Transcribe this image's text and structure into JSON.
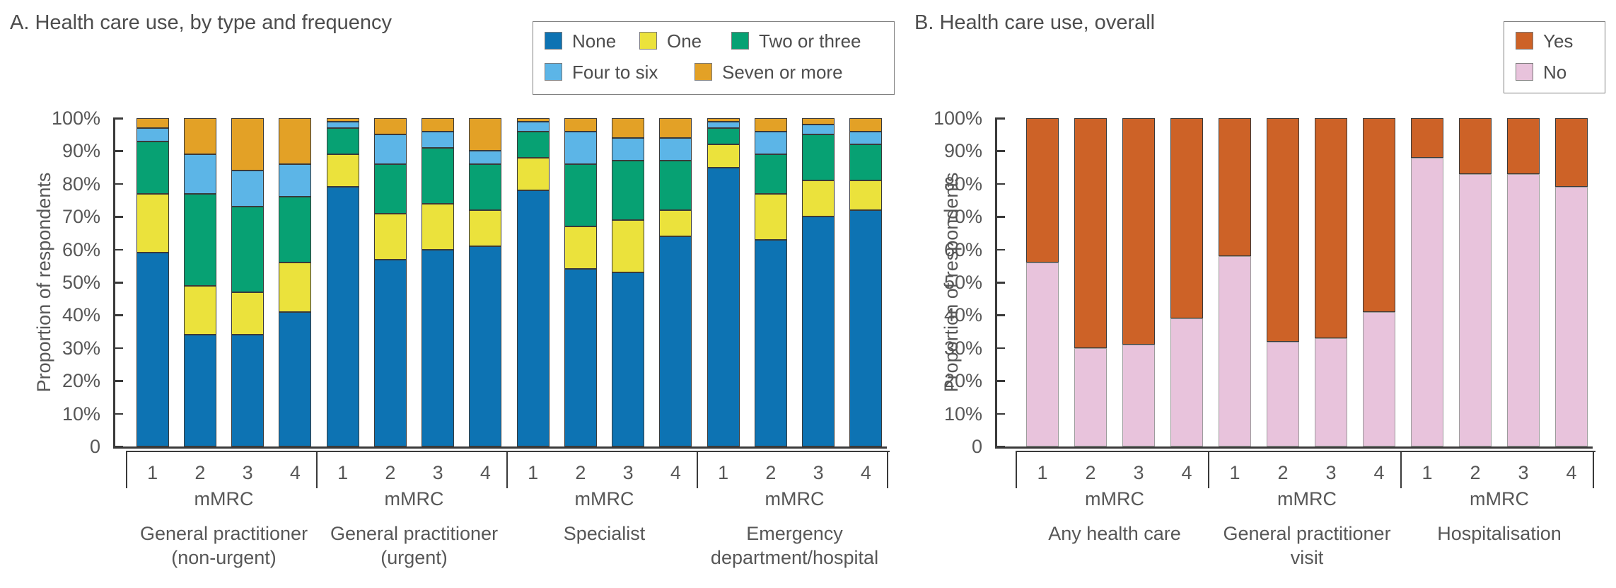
{
  "chart_data": [
    {
      "type": "bar",
      "subtype": "stacked-100-percent",
      "title": "A. Health care use, by type and frequency",
      "ylabel": "Proportion of respondents",
      "ylim": [
        0,
        100
      ],
      "yticks": [
        "100%",
        "90%",
        "80%",
        "70%",
        "60%",
        "50%",
        "40%",
        "30%",
        "20%",
        "10%",
        "0"
      ],
      "grid": false,
      "legend_position": "top-right",
      "legend_rows": [
        [
          "None",
          "One",
          "Two or three"
        ],
        [
          "Four to six",
          "Seven or more"
        ]
      ],
      "x_sub_axis_label": "mMRC",
      "series": [
        {
          "name": "None",
          "color": "#0d73b3",
          "border": "#3a3a3a"
        },
        {
          "name": "One",
          "color": "#ebe23c",
          "border": "#3a3a3a"
        },
        {
          "name": "Two or three",
          "color": "#07a173",
          "border": "#3a3a3a"
        },
        {
          "name": "Four to six",
          "color": "#5cb5e7",
          "border": "#3a3a3a"
        },
        {
          "name": "Seven or more",
          "color": "#e3a126",
          "border": "#3a3a3a"
        }
      ],
      "groups": [
        {
          "label_lines": [
            "General practitioner",
            "(non-urgent)"
          ],
          "bars": [
            {
              "x": "1",
              "values": [
                59,
                18,
                16,
                4,
                3
              ]
            },
            {
              "x": "2",
              "values": [
                34,
                15,
                28,
                12,
                11
              ]
            },
            {
              "x": "3",
              "values": [
                34,
                13,
                26,
                11,
                16
              ]
            },
            {
              "x": "4",
              "values": [
                41,
                15,
                20,
                10,
                14
              ]
            }
          ]
        },
        {
          "label_lines": [
            "General practitioner",
            "(urgent)"
          ],
          "bars": [
            {
              "x": "1",
              "values": [
                79,
                10,
                8,
                2,
                1
              ]
            },
            {
              "x": "2",
              "values": [
                57,
                14,
                15,
                9,
                5
              ]
            },
            {
              "x": "3",
              "values": [
                60,
                14,
                17,
                5,
                4
              ]
            },
            {
              "x": "4",
              "values": [
                61,
                11,
                14,
                4,
                10
              ]
            }
          ]
        },
        {
          "label_lines": [
            "Specialist"
          ],
          "bars": [
            {
              "x": "1",
              "values": [
                78,
                10,
                8,
                3,
                1
              ]
            },
            {
              "x": "2",
              "values": [
                54,
                13,
                19,
                10,
                4
              ]
            },
            {
              "x": "3",
              "values": [
                53,
                16,
                18,
                7,
                6
              ]
            },
            {
              "x": "4",
              "values": [
                64,
                8,
                15,
                7,
                6
              ]
            }
          ]
        },
        {
          "label_lines": [
            "Emergency",
            "department/hospital"
          ],
          "bars": [
            {
              "x": "1",
              "values": [
                85,
                7,
                5,
                2,
                1
              ]
            },
            {
              "x": "2",
              "values": [
                63,
                14,
                12,
                7,
                4
              ]
            },
            {
              "x": "3",
              "values": [
                70,
                11,
                14,
                3,
                2
              ]
            },
            {
              "x": "4",
              "values": [
                72,
                9,
                11,
                4,
                4
              ]
            }
          ]
        }
      ]
    },
    {
      "type": "bar",
      "subtype": "stacked-100-percent",
      "title": "B. Health care use, overall",
      "ylabel": "Proportion of respondents",
      "ylim": [
        0,
        100
      ],
      "yticks": [
        "100%",
        "90%",
        "80%",
        "70%",
        "60%",
        "50%",
        "40%",
        "30%",
        "20%",
        "10%",
        "0"
      ],
      "grid": false,
      "legend_position": "top-right",
      "legend_rows": [
        [
          "Yes"
        ],
        [
          "No"
        ]
      ],
      "x_sub_axis_label": "mMRC",
      "series": [
        {
          "name": "No",
          "color": "#e8c3dc",
          "border": "#9c9c9c"
        },
        {
          "name": "Yes",
          "color": "#cd6227",
          "border": "#3a3a3a"
        }
      ],
      "groups": [
        {
          "label_lines": [
            "Any health care"
          ],
          "bars": [
            {
              "x": "1",
              "values": [
                56,
                44
              ]
            },
            {
              "x": "2",
              "values": [
                30,
                70
              ]
            },
            {
              "x": "3",
              "values": [
                31,
                69
              ]
            },
            {
              "x": "4",
              "values": [
                39,
                61
              ]
            }
          ]
        },
        {
          "label_lines": [
            "General practitioner",
            "visit"
          ],
          "bars": [
            {
              "x": "1",
              "values": [
                58,
                42
              ]
            },
            {
              "x": "2",
              "values": [
                32,
                68
              ]
            },
            {
              "x": "3",
              "values": [
                33,
                67
              ]
            },
            {
              "x": "4",
              "values": [
                41,
                59
              ]
            }
          ]
        },
        {
          "label_lines": [
            "Hospitalisation"
          ],
          "bars": [
            {
              "x": "1",
              "values": [
                88,
                12
              ]
            },
            {
              "x": "2",
              "values": [
                83,
                17
              ]
            },
            {
              "x": "3",
              "values": [
                83,
                17
              ]
            },
            {
              "x": "4",
              "values": [
                79,
                21
              ]
            }
          ]
        }
      ]
    }
  ]
}
